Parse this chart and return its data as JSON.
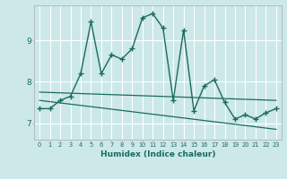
{
  "xlabel": "Humidex (Indice chaleur)",
  "background_color": "#cce8e8",
  "line_color": "#1a6b5e",
  "grid_color": "#ffffff",
  "xlim": [
    -0.5,
    23.5
  ],
  "ylim": [
    6.6,
    9.85
  ],
  "yticks": [
    7,
    8,
    9
  ],
  "xticks": [
    0,
    1,
    2,
    3,
    4,
    5,
    6,
    7,
    8,
    9,
    10,
    11,
    12,
    13,
    14,
    15,
    16,
    17,
    18,
    19,
    20,
    21,
    22,
    23
  ],
  "series1_x": [
    0,
    1,
    2,
    3,
    4,
    5,
    6,
    7,
    8,
    9,
    10,
    11,
    12,
    13,
    14,
    15,
    16,
    17,
    18,
    19,
    20,
    21,
    22,
    23
  ],
  "series1_y": [
    7.35,
    7.35,
    7.55,
    7.65,
    8.2,
    9.45,
    8.2,
    8.65,
    8.55,
    8.8,
    9.55,
    9.65,
    9.3,
    7.55,
    9.25,
    7.3,
    7.9,
    8.05,
    7.5,
    7.1,
    7.2,
    7.1,
    7.25,
    7.35
  ],
  "series2_x": [
    0,
    23
  ],
  "series2_y": [
    7.75,
    7.55
  ],
  "series3_x": [
    0,
    23
  ],
  "series3_y": [
    7.55,
    6.85
  ],
  "figsize": [
    3.2,
    2.0
  ],
  "dpi": 100
}
